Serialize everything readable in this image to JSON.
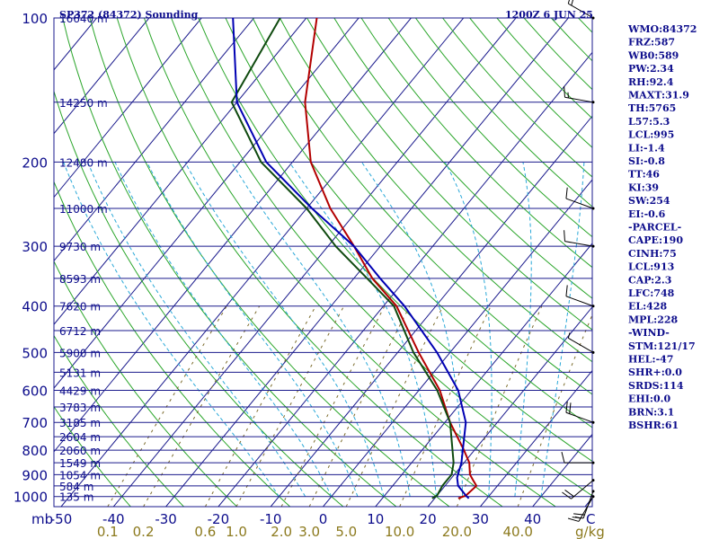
{
  "chart_data": {
    "type": "line",
    "chart_kind": "skew-t log-p sounding",
    "title": "SP372 (84372) Sounding",
    "valid_time": "1200Z  6 JUN 25",
    "pressure_unit_label": "mb",
    "pressure_ticks": [
      100,
      200,
      300,
      400,
      500,
      600,
      700,
      800,
      900,
      1000
    ],
    "pressure_range": [
      1050,
      100
    ],
    "temperature_range_C": [
      -50,
      50
    ],
    "x_axis_label": "C",
    "x_ticks": [
      -50,
      -40,
      -30,
      -20,
      -10,
      0,
      10,
      20,
      30,
      40
    ],
    "x_tick_labels": [
      "-50",
      "-40",
      "-30",
      "-20",
      "-10",
      "0",
      "10",
      "20",
      "30",
      "40"
    ],
    "mixing_ratio_axis_label": "g/kg",
    "mixing_ratio_labels": [
      {
        "label": "0.1",
        "value": 0.1
      },
      {
        "label": "0.2",
        "value": 0.2
      },
      {
        "label": "0.6",
        "value": 0.6
      },
      {
        "label": "1.0",
        "value": 1.0
      },
      {
        "label": "2.0",
        "value": 2.0
      },
      {
        "label": "3.0",
        "value": 3.0
      },
      {
        "label": "5.0",
        "value": 5.0
      },
      {
        "label": "10.0",
        "value": 10.0
      },
      {
        "label": "20.0",
        "value": 20.0
      },
      {
        "label": "40.0",
        "value": 40.0
      }
    ],
    "height_levels": [
      {
        "pressure": 100,
        "label": "16640 m"
      },
      {
        "pressure": 150,
        "label": "14250 m"
      },
      {
        "pressure": 200,
        "label": "12480 m"
      },
      {
        "pressure": 250,
        "label": "11000 m"
      },
      {
        "pressure": 300,
        "label": "9730 m"
      },
      {
        "pressure": 350,
        "label": "8593 m"
      },
      {
        "pressure": 400,
        "label": "7620 m"
      },
      {
        "pressure": 450,
        "label": "6712 m"
      },
      {
        "pressure": 500,
        "label": "5900 m"
      },
      {
        "pressure": 550,
        "label": "5131 m"
      },
      {
        "pressure": 600,
        "label": "4429 m"
      },
      {
        "pressure": 650,
        "label": "3783 m"
      },
      {
        "pressure": 700,
        "label": "3185 m"
      },
      {
        "pressure": 750,
        "label": "2604 m"
      },
      {
        "pressure": 800,
        "label": "2060 m"
      },
      {
        "pressure": 850,
        "label": "1549 m"
      },
      {
        "pressure": 900,
        "label": "1054 m"
      },
      {
        "pressure": 950,
        "label": "584 m"
      },
      {
        "pressure": 1000,
        "label": "135 m"
      }
    ],
    "series": [
      {
        "id": "temperature",
        "color": "#b30000",
        "points": [
          [
            1009,
            24.5
          ],
          [
            995,
            25.5
          ],
          [
            950,
            26.0
          ],
          [
            925,
            24.5
          ],
          [
            900,
            23.0
          ],
          [
            850,
            21.0
          ],
          [
            800,
            18.0
          ],
          [
            700,
            11.0
          ],
          [
            600,
            4.0
          ],
          [
            500,
            -6.0
          ],
          [
            400,
            -17.5
          ],
          [
            350,
            -26.5
          ],
          [
            300,
            -35.0
          ],
          [
            250,
            -45.5
          ],
          [
            200,
            -56.5
          ],
          [
            150,
            -67.0
          ],
          [
            100,
            -78.0
          ]
        ]
      },
      {
        "id": "dewpoint",
        "color": "#0f4a0f",
        "points": [
          [
            1009,
            19.5
          ],
          [
            995,
            20.0
          ],
          [
            950,
            19.5
          ],
          [
            900,
            19.5
          ],
          [
            850,
            18.0
          ],
          [
            700,
            11.0
          ],
          [
            600,
            3.5
          ],
          [
            500,
            -7.0
          ],
          [
            400,
            -18.0
          ],
          [
            350,
            -27.5
          ],
          [
            300,
            -38.5
          ],
          [
            250,
            -50.0
          ],
          [
            200,
            -66.0
          ],
          [
            150,
            -81.0
          ],
          [
            100,
            -85.0
          ]
        ]
      },
      {
        "id": "parcel",
        "color": "#0000b3",
        "points": [
          [
            1009,
            26.5
          ],
          [
            995,
            25.5
          ],
          [
            950,
            22.5
          ],
          [
            913,
            21.0
          ],
          [
            850,
            19.5
          ],
          [
            700,
            14.0
          ],
          [
            600,
            7.5
          ],
          [
            500,
            -2.5
          ],
          [
            400,
            -16.0
          ],
          [
            350,
            -25.0
          ],
          [
            300,
            -35.0
          ],
          [
            250,
            -49.0
          ],
          [
            200,
            -65.0
          ],
          [
            150,
            -80.0
          ],
          [
            100,
            -94.0
          ]
        ]
      }
    ],
    "wind_barbs": [
      {
        "pressure": 1000,
        "dir": 210,
        "kt": 15
      },
      {
        "pressure": 975,
        "dir": 200,
        "kt": 20
      },
      {
        "pressure": 925,
        "dir": 230,
        "kt": 20
      },
      {
        "pressure": 850,
        "dir": 270,
        "kt": 10
      },
      {
        "pressure": 700,
        "dir": 290,
        "kt": 20
      },
      {
        "pressure": 500,
        "dir": 300,
        "kt": 5
      },
      {
        "pressure": 400,
        "dir": 290,
        "kt": 10
      },
      {
        "pressure": 300,
        "dir": 280,
        "kt": 10
      },
      {
        "pressure": 250,
        "dir": 290,
        "kt": 10
      },
      {
        "pressure": 150,
        "dir": 280,
        "kt": 15
      },
      {
        "pressure": 100,
        "dir": 300,
        "kt": 20
      }
    ],
    "grid": true
  },
  "indices": [
    "WMO:84372",
    "FRZ:587",
    "WB0:589",
    "PW:2.34",
    "RH:92.4",
    "MAXT:31.9",
    "TH:5765",
    "L57:5.3",
    "LCL:995",
    "LI:-1.4",
    "SI:-0.8",
    "TT:46",
    "KI:39",
    "SW:254",
    "EI:-0.6",
    "-PARCEL-",
    "CAPE:190",
    "CINH:75",
    "LCL:913",
    "CAP:2.3",
    "LFC:748",
    "EL:428",
    "MPL:228",
    "-WIND-",
    "STM:121/17",
    "HEL:-47",
    "SHR+:0.0",
    "SRDS:114",
    "EHI:0.0",
    "BRN:3.1",
    "BSHR:61"
  ],
  "colors": {
    "background": "#ffffff",
    "isobar": "#1a1a8c",
    "isotherm": "#1a1a8c",
    "dry_adiabat": "#2aa52a",
    "moist_adiabat": "#29a8d8",
    "mixing_ratio": "#7a6a2a",
    "text": "#0d0d8c",
    "mixing_label": "#8c7a1e"
  }
}
